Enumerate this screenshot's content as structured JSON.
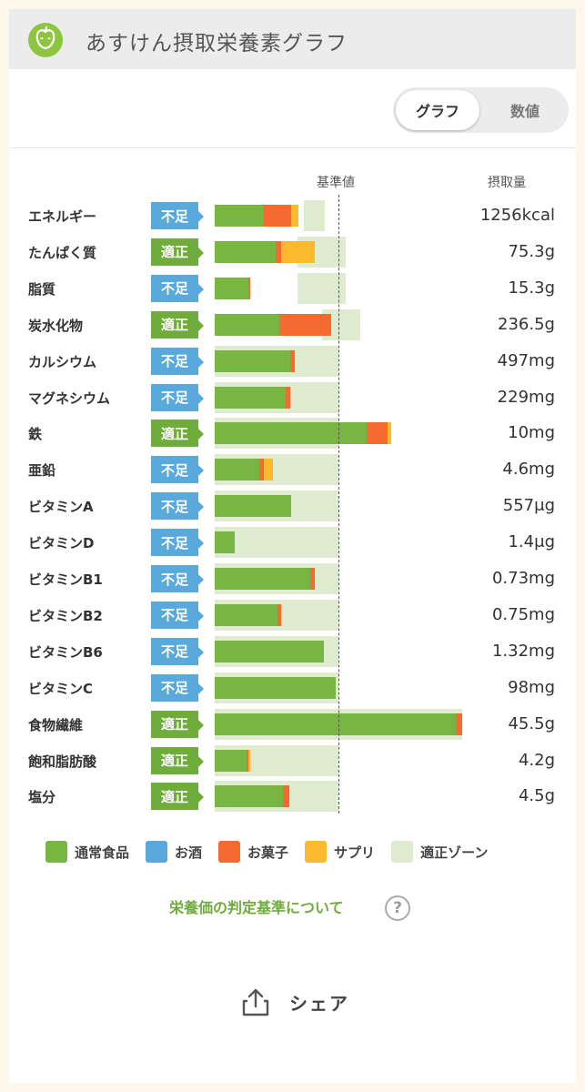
{
  "header": {
    "title": "あすけん摂取栄養素グラフ",
    "logo_icon": "apple-icon"
  },
  "toggle": {
    "graph_label": "グラフ",
    "numeric_label": "数値",
    "selected": "graph"
  },
  "columns": {
    "standard_label": "基準値",
    "intake_label": "摂取量"
  },
  "colors": {
    "food": "#78b543",
    "alcohol": "#5aa9dc",
    "sweets": "#f46a2f",
    "supplement": "#fbb92e",
    "zone": "#dfebce",
    "badge_low": "#5aa9dc",
    "badge_ok": "#6fac3b"
  },
  "nutrients": [
    {
      "name": "エネルギー",
      "status": "不足",
      "level": "low",
      "value": "1256kcal",
      "zone": [
        0.72,
        0.89
      ],
      "bar": {
        "food": 0.4,
        "sweets": 0.22,
        "supplement": 0.06
      }
    },
    {
      "name": "たんぱく質",
      "status": "適正",
      "level": "ok",
      "value": "75.3g",
      "zone": [
        0.67,
        1.06
      ],
      "bar": {
        "food": 0.49,
        "sweets": 0.05,
        "supplement": 0.27
      }
    },
    {
      "name": "脂質",
      "status": "不足",
      "level": "low",
      "value": "15.3g",
      "zone": [
        0.67,
        1.06
      ],
      "bar": {
        "food": 0.27,
        "sweets": 0.02
      }
    },
    {
      "name": "炭水化物",
      "status": "適正",
      "level": "ok",
      "value": "236.5g",
      "zone": [
        0.87,
        1.18
      ],
      "bar": {
        "food": 0.52,
        "sweets": 0.42
      }
    },
    {
      "name": "カルシウム",
      "status": "不足",
      "level": "low",
      "value": "497mg",
      "zone": [
        0.0,
        1.0
      ],
      "bar": {
        "food": 0.61,
        "sweets": 0.04
      }
    },
    {
      "name": "マグネシウム",
      "status": "不足",
      "level": "low",
      "value": "229mg",
      "zone": [
        0.0,
        1.0
      ],
      "bar": {
        "food": 0.57,
        "sweets": 0.04
      }
    },
    {
      "name": "鉄",
      "status": "適正",
      "level": "ok",
      "value": "10mg",
      "zone": [
        0.0,
        1.0
      ],
      "bar": {
        "food": 1.23,
        "sweets": 0.17,
        "supplement": 0.03
      }
    },
    {
      "name": "亜鉛",
      "status": "不足",
      "level": "low",
      "value": "4.6mg",
      "zone": [
        0.0,
        1.0
      ],
      "bar": {
        "food": 0.36,
        "sweets": 0.04,
        "supplement": 0.07
      }
    },
    {
      "name": "ビタミンA",
      "status": "不足",
      "level": "low",
      "value": "557μg",
      "zone": [
        0.0,
        1.0
      ],
      "bar": {
        "food": 0.62
      }
    },
    {
      "name": "ビタミンD",
      "status": "不足",
      "level": "low",
      "value": "1.4μg",
      "zone": [
        0.0,
        1.0
      ],
      "bar": {
        "food": 0.16
      }
    },
    {
      "name": "ビタミンB1",
      "status": "不足",
      "level": "low",
      "value": "0.73mg",
      "zone": [
        0.0,
        1.0
      ],
      "bar": {
        "food": 0.77,
        "sweets": 0.04
      }
    },
    {
      "name": "ビタミンB2",
      "status": "不足",
      "level": "low",
      "value": "0.75mg",
      "zone": [
        0.0,
        1.0
      ],
      "bar": {
        "food": 0.51,
        "sweets": 0.03
      }
    },
    {
      "name": "ビタミンB6",
      "status": "不足",
      "level": "low",
      "value": "1.32mg",
      "zone": [
        0.0,
        1.0
      ],
      "bar": {
        "food": 0.88
      }
    },
    {
      "name": "ビタミンC",
      "status": "不足",
      "level": "low",
      "value": "98mg",
      "zone": [
        0.0,
        1.0
      ],
      "bar": {
        "food": 0.98
      }
    },
    {
      "name": "食物繊維",
      "status": "適正",
      "level": "ok",
      "value": "45.5g",
      "zone": [
        0.0,
        2.0
      ],
      "bar": {
        "food": 1.95,
        "sweets": 0.05
      }
    },
    {
      "name": "飽和脂肪酸",
      "status": "適正",
      "level": "ok",
      "value": "4.2g",
      "zone": [
        0.0,
        1.0
      ],
      "bar": {
        "food": 0.26,
        "sweets": 0.01,
        "supplement": 0.02
      }
    },
    {
      "name": "塩分",
      "status": "適正",
      "level": "ok",
      "value": "4.5g",
      "zone": [
        0.0,
        1.0
      ],
      "bar": {
        "food": 0.55,
        "sweets": 0.05
      }
    }
  ],
  "legend": [
    {
      "label": "通常食品",
      "key": "food"
    },
    {
      "label": "お酒",
      "key": "alcohol"
    },
    {
      "label": "お菓子",
      "key": "sweets"
    },
    {
      "label": "サプリ",
      "key": "supplement"
    },
    {
      "label": "適正ゾーン",
      "key": "zone"
    }
  ],
  "criteria_link": {
    "label": "栄養価の判定基準について",
    "help_icon": "question-icon"
  },
  "share": {
    "label": "シェア",
    "icon": "share-icon"
  }
}
